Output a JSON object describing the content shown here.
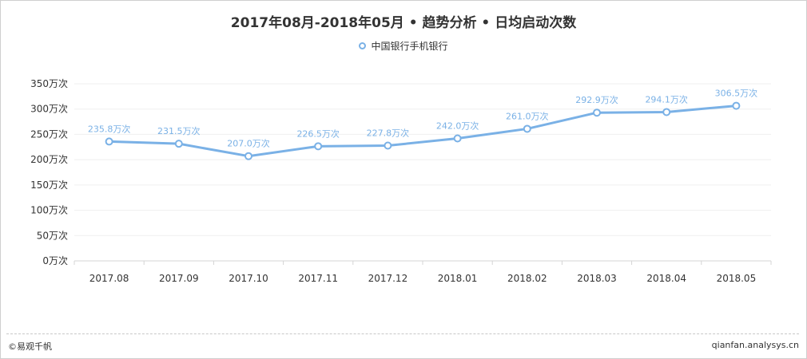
{
  "colors": {
    "series": "#7ab1e6",
    "grid": "#efefef",
    "axis": "#d4d4d4"
  },
  "chart_data": {
    "type": "line",
    "title": "2017年08月-2018年05月 • 趋势分析 • 日均启动次数",
    "categories": [
      "2017.08",
      "2017.09",
      "2017.10",
      "2017.11",
      "2017.12",
      "2018.01",
      "2018.02",
      "2018.03",
      "2018.04",
      "2018.05"
    ],
    "series": [
      {
        "name": "中国银行手机银行",
        "values": [
          235.8,
          231.5,
          207.0,
          226.5,
          227.8,
          242.0,
          261.0,
          292.9,
          294.1,
          306.5
        ],
        "labels": [
          "235.8万次",
          "231.5万次",
          "207.0万次",
          "226.5万次",
          "227.8万次",
          "242.0万次",
          "261.0万次",
          "292.9万次",
          "294.1万次",
          "306.5万次"
        ]
      }
    ],
    "ylim": [
      0,
      350
    ],
    "yticks": [
      0,
      50,
      100,
      150,
      200,
      250,
      300,
      350
    ],
    "ytick_labels": [
      "0万次",
      "50万次",
      "100万次",
      "150万次",
      "200万次",
      "250万次",
      "300万次",
      "350万次"
    ],
    "legend": "top-center",
    "grid": true
  },
  "footer": {
    "left": "©易观千帆",
    "right": "qianfan.analysys.cn"
  }
}
